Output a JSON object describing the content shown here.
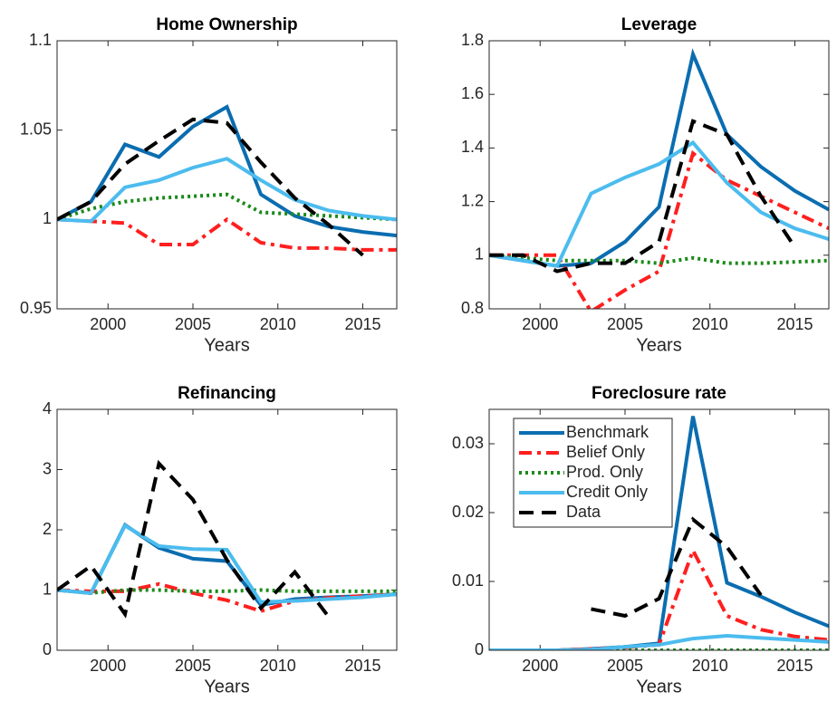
{
  "chart_data": [
    {
      "type": "line",
      "title": "Home Ownership",
      "x_label": "Years",
      "x": [
        1997,
        1999,
        2001,
        2003,
        2005,
        2007,
        2009,
        2011,
        2013,
        2015,
        2017
      ],
      "xlim": [
        1997,
        2017
      ],
      "xticks": [
        2000,
        2005,
        2010,
        2015
      ],
      "ylim": [
        0.95,
        1.1
      ],
      "yticks": [
        0.95,
        1,
        1.05,
        1.1
      ],
      "series": [
        {
          "color": "#0b6db0",
          "style": "solid",
          "values": [
            1.0,
            1.01,
            1.042,
            1.035,
            1.052,
            1.063,
            1.014,
            1.002,
            0.996,
            0.993,
            0.991
          ]
        },
        {
          "color": "#ff1f1f",
          "style": "dash-dot",
          "values": [
            1.0,
            0.999,
            0.998,
            0.986,
            0.986,
            1.0,
            0.987,
            0.984,
            0.984,
            0.983,
            0.983
          ]
        },
        {
          "color": "#1a8a1a",
          "style": "dotted",
          "values": [
            1.0,
            1.006,
            1.01,
            1.012,
            1.013,
            1.014,
            1.004,
            1.003,
            1.002,
            1.001,
            1.0
          ]
        },
        {
          "color": "#4cbcee",
          "style": "solid",
          "values": [
            1.0,
            0.999,
            1.018,
            1.022,
            1.029,
            1.034,
            1.022,
            1.011,
            1.005,
            1.002,
            1.0
          ]
        },
        {
          "color": "#000000",
          "style": "dash",
          "values": [
            1.0,
            1.01,
            1.031,
            1.044,
            1.056,
            1.054,
            1.032,
            1.012,
            0.997,
            0.98,
            null
          ]
        }
      ]
    },
    {
      "type": "line",
      "title": "Leverage",
      "x_label": "Years",
      "x": [
        1997,
        1999,
        2001,
        2003,
        2005,
        2007,
        2009,
        2011,
        2013,
        2015,
        2017
      ],
      "xlim": [
        1997,
        2017
      ],
      "xticks": [
        2000,
        2005,
        2010,
        2015
      ],
      "ylim": [
        0.8,
        1.8
      ],
      "yticks": [
        0.8,
        1,
        1.2,
        1.4,
        1.6,
        1.8
      ],
      "series": [
        {
          "color": "#0b6db0",
          "style": "solid",
          "values": [
            1.0,
            0.98,
            0.96,
            0.97,
            1.05,
            1.18,
            1.75,
            1.45,
            1.33,
            1.24,
            1.17
          ]
        },
        {
          "color": "#ff1f1f",
          "style": "dash-dot",
          "values": [
            1.0,
            1.0,
            1.0,
            0.79,
            0.87,
            0.94,
            1.38,
            1.28,
            1.22,
            1.16,
            1.1
          ]
        },
        {
          "color": "#1a8a1a",
          "style": "dotted",
          "values": [
            1.0,
            0.99,
            0.98,
            0.98,
            0.98,
            0.97,
            0.99,
            0.97,
            0.97,
            0.975,
            0.98
          ]
        },
        {
          "color": "#4cbcee",
          "style": "solid",
          "values": [
            1.0,
            0.98,
            0.96,
            1.23,
            1.29,
            1.34,
            1.42,
            1.27,
            1.16,
            1.1,
            1.06
          ]
        },
        {
          "color": "#000000",
          "style": "dash",
          "values": [
            1.0,
            1.0,
            0.94,
            0.97,
            0.97,
            1.05,
            1.5,
            1.45,
            1.22,
            1.03,
            null
          ]
        }
      ]
    },
    {
      "type": "line",
      "title": "Refinancing",
      "x_label": "Years",
      "x": [
        1997,
        1999,
        2001,
        2003,
        2005,
        2007,
        2009,
        2011,
        2013,
        2015,
        2017
      ],
      "xlim": [
        1997,
        2017
      ],
      "xticks": [
        2000,
        2005,
        2010,
        2015
      ],
      "ylim": [
        0,
        4
      ],
      "yticks": [
        0,
        1,
        2,
        3,
        4
      ],
      "series": [
        {
          "color": "#0b6db0",
          "style": "solid",
          "values": [
            1.0,
            0.95,
            2.08,
            1.7,
            1.52,
            1.48,
            0.75,
            0.85,
            0.88,
            0.9,
            0.93
          ]
        },
        {
          "color": "#ff1f1f",
          "style": "dash-dot",
          "values": [
            1.0,
            0.98,
            0.98,
            1.1,
            0.95,
            0.83,
            0.65,
            0.82,
            0.87,
            0.9,
            0.93
          ]
        },
        {
          "color": "#1a8a1a",
          "style": "dotted",
          "values": [
            1.0,
            0.95,
            1.0,
            1.0,
            0.98,
            0.98,
            1.0,
            0.98,
            0.98,
            0.98,
            0.98
          ]
        },
        {
          "color": "#4cbcee",
          "style": "solid",
          "values": [
            1.0,
            0.95,
            2.07,
            1.73,
            1.68,
            1.67,
            0.8,
            0.82,
            0.85,
            0.88,
            0.93
          ]
        },
        {
          "color": "#000000",
          "style": "dash",
          "values": [
            1.0,
            1.4,
            0.6,
            3.1,
            2.5,
            1.5,
            0.7,
            1.3,
            0.55,
            null,
            null
          ]
        }
      ]
    },
    {
      "type": "line",
      "title": "Foreclosure rate",
      "x_label": "Years",
      "legend": "upper left",
      "x": [
        1997,
        1999,
        2001,
        2003,
        2005,
        2007,
        2009,
        2011,
        2013,
        2015,
        2017
      ],
      "xlim": [
        1997,
        2017
      ],
      "xticks": [
        2000,
        2005,
        2010,
        2015
      ],
      "ylim": [
        0,
        0.035
      ],
      "yticks": [
        0,
        0.01,
        0.02,
        0.03
      ],
      "series": [
        {
          "name": "Benchmark",
          "color": "#0b6db0",
          "style": "solid",
          "values": [
            0,
            0,
            0,
            0.0002,
            0.0005,
            0.001,
            0.034,
            0.0098,
            0.0078,
            0.0055,
            0.0035
          ]
        },
        {
          "name": "Belief Only",
          "color": "#ff1f1f",
          "style": "dash-dot",
          "values": [
            0,
            0,
            0,
            0.0002,
            0.0004,
            0.0008,
            0.0145,
            0.005,
            0.003,
            0.002,
            0.0015
          ]
        },
        {
          "name": "Prod. Only",
          "color": "#1a8a1a",
          "style": "dotted",
          "values": [
            0,
            0,
            0,
            0,
            0,
            0,
            0,
            0,
            0,
            0,
            0
          ]
        },
        {
          "name": "Credit Only",
          "color": "#4cbcee",
          "style": "solid",
          "values": [
            0,
            0,
            0,
            0.0001,
            0.0005,
            0.0008,
            0.0017,
            0.0021,
            0.0018,
            0.0015,
            0.0012
          ]
        },
        {
          "name": "Data",
          "color": "#000000",
          "style": "dash",
          "values": [
            null,
            null,
            null,
            0.006,
            0.005,
            0.0075,
            0.019,
            0.015,
            0.008,
            null,
            null
          ]
        }
      ]
    }
  ]
}
